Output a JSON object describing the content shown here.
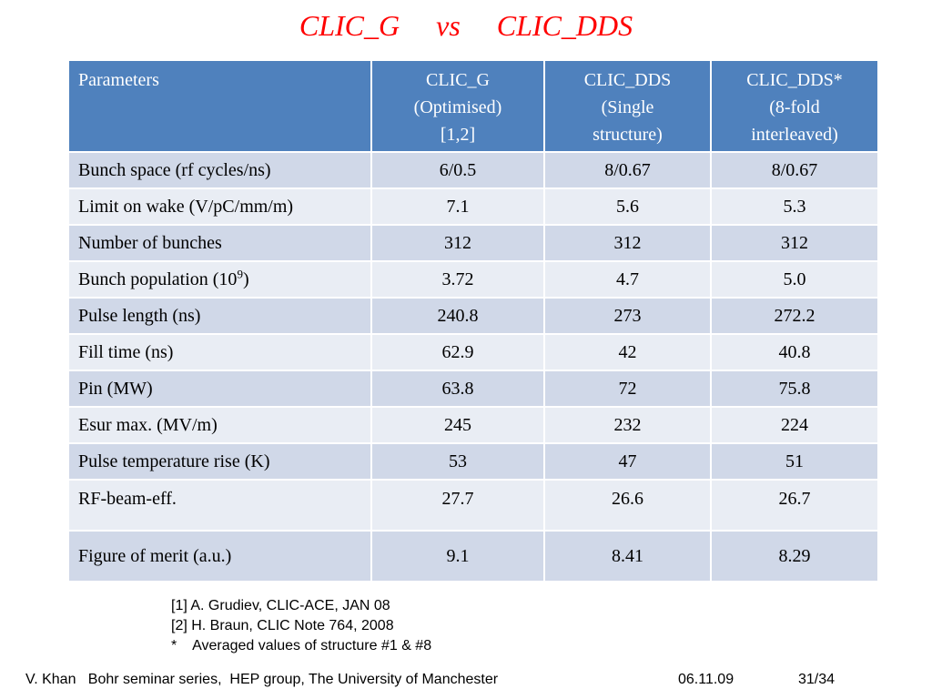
{
  "title": "CLIC_G     vs     CLIC_DDS",
  "table": {
    "headers": [
      {
        "lines": [
          "Parameters"
        ]
      },
      {
        "lines": [
          "CLIC_G",
          "(Optimised)",
          "[1,2]"
        ]
      },
      {
        "lines": [
          "CLIC_DDS",
          "(Single",
          "structure)"
        ]
      },
      {
        "lines": [
          "CLIC_DDS*",
          "(8-fold",
          "interleaved)"
        ]
      }
    ],
    "rows": [
      {
        "label": "Bunch space (rf cycles/ns)",
        "values": [
          "6/0.5",
          "8/0.67",
          "8/0.67"
        ]
      },
      {
        "label": "Limit on wake (V/pC/mm/m)",
        "values": [
          "7.1",
          "5.6",
          "5.3"
        ]
      },
      {
        "label": "Number of bunches",
        "values": [
          "312",
          "312",
          "312"
        ]
      },
      {
        "label": "Bunch population (10",
        "label_sup": "9",
        "label_suffix": ")",
        "values": [
          "3.72",
          "4.7",
          "5.0"
        ]
      },
      {
        "label": "Pulse length (ns)",
        "values": [
          "240.8",
          "273",
          "272.2"
        ]
      },
      {
        "label": "Fill time (ns)",
        "values": [
          "62.9",
          "42",
          "40.8"
        ]
      },
      {
        "label": "Pin (MW)",
        "values": [
          "63.8",
          "72",
          "75.8"
        ]
      },
      {
        "label": "Esur max. (MV/m)",
        "values": [
          "245",
          "232",
          "224"
        ]
      },
      {
        "label": "Pulse temperature rise (K)",
        "values": [
          "53",
          "47",
          "51"
        ]
      },
      {
        "label": "RF-beam-eff.",
        "values": [
          "27.7",
          "26.6",
          "26.7"
        ]
      },
      {
        "label": "Figure of merit (a.u.)",
        "values": [
          "9.1",
          "8.41",
          "8.29"
        ]
      }
    ]
  },
  "references": [
    "[1] A. Grudiev, CLIC-ACE, JAN 08",
    "[2] H. Braun, CLIC Note 764, 2008",
    "*    Averaged values of structure #1 & #8"
  ],
  "footer": {
    "author_event": "V. Khan   Bohr seminar series,  HEP group, The University of Manchester",
    "date": "06.11.09",
    "page": "31/34"
  },
  "colors": {
    "title": "#ff0000",
    "header_bg": "#4f81bd",
    "row_odd": "#d0d8e8",
    "row_even": "#e9edf4"
  }
}
